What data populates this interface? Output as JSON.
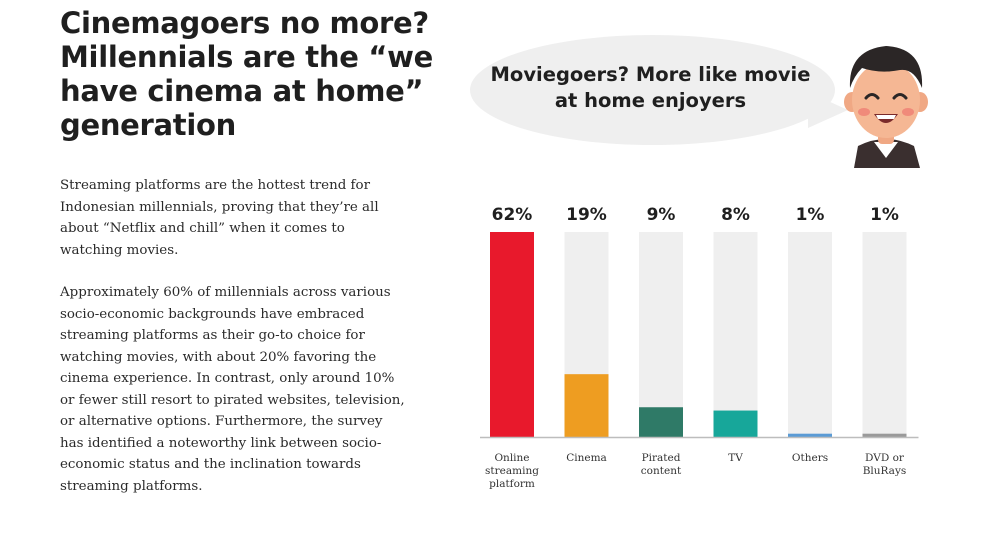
{
  "article": {
    "headline": "Cinemagoers no more? Millennials are the “we have cinema at home” generation",
    "paragraph_1": "Streaming platforms are the hottest trend for Indonesian millennials, proving that they’re all about “Netflix and chill” when it comes to watching movies.",
    "paragraph_2": "Approximately 60% of millennials across various socio-economic backgrounds have embraced streaming platforms as their go-to choice for watching movies, with about 20% favoring the cinema experience. In contrast, only around 10% or fewer still resort to pirated websites, television, or alternative options. Furthermore, the survey has identified a noteworthy link between socio-economic status and the inclination towards streaming platforms."
  },
  "bubble": {
    "text": "Moviegoers? More like movie at home enjoyers"
  },
  "avatar": {
    "icon": "smiling-boy-avatar-icon"
  },
  "chart_data": {
    "type": "bar",
    "categories": [
      "Online streaming platform",
      "Cinema",
      "Pirated content",
      "TV",
      "Others",
      "DVD or BluRays"
    ],
    "category_lines": [
      [
        "Online",
        "streaming",
        "platform"
      ],
      [
        "Cinema"
      ],
      [
        "Pirated",
        "content"
      ],
      [
        "TV"
      ],
      [
        "Others"
      ],
      [
        "DVD or",
        "BluRays"
      ]
    ],
    "values": [
      62,
      19,
      9,
      8,
      1,
      1
    ],
    "value_labels": [
      "62%",
      "19%",
      "9%",
      "8%",
      "1%",
      "1%"
    ],
    "colors": [
      "#e8192c",
      "#ee9d21",
      "#2f7a67",
      "#17a79a",
      "#5b9bd5",
      "#9a9a9a"
    ],
    "track_color": "#efefef",
    "ylim": [
      0,
      62
    ],
    "grid": false,
    "legend": "none"
  }
}
